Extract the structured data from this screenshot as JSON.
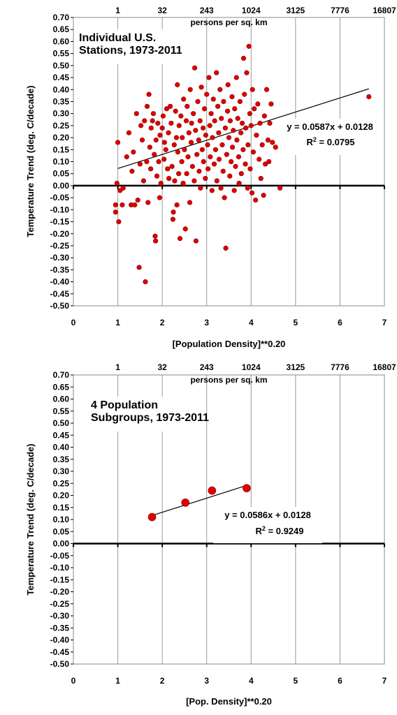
{
  "chart_data": [
    {
      "type": "scatter",
      "title": "Individual U.S. Stations, 1973-2011",
      "title_lines": [
        "Individual U.S.",
        "Stations, 1973-2011"
      ],
      "xlabel": "[Population Density]**0.20",
      "ylabel": "Temperature Trend (deg. C/decade)",
      "secondary_xlabel": "persons per sq. km",
      "secondary_x_ticks": [
        "1",
        "32",
        "243",
        "1024",
        "3125",
        "7776",
        "16807"
      ],
      "xlim": [
        0,
        7
      ],
      "ylim": [
        -0.5,
        0.7
      ],
      "x_ticks": [
        "0",
        "1",
        "2",
        "3",
        "4",
        "5",
        "6",
        "7"
      ],
      "y_ticks": [
        "0.70",
        "0.65",
        "0.60",
        "0.55",
        "0.50",
        "0.45",
        "0.40",
        "0.35",
        "0.30",
        "0.25",
        "0.20",
        "0.15",
        "0.10",
        "0.05",
        "0.00",
        "-0.05",
        "-0.10",
        "-0.15",
        "-0.20",
        "-0.25",
        "-0.30",
        "-0.35",
        "-0.40",
        "-0.45",
        "-0.50"
      ],
      "grid": "vertical",
      "marker_color": "#dd0000",
      "trendline": {
        "slope": 0.0587,
        "intercept": 0.0128,
        "x_range": [
          1.0,
          6.65
        ]
      },
      "equation": "y = 0.0587x + 0.0128",
      "r2_prefix": "R",
      "r2_value": " = 0.0795",
      "points": [
        [
          0.95,
          -0.11
        ],
        [
          0.95,
          -0.08
        ],
        [
          0.98,
          0.01
        ],
        [
          1.0,
          0.18
        ],
        [
          1.02,
          -0.15
        ],
        [
          1.05,
          -0.02
        ],
        [
          1.1,
          -0.08
        ],
        [
          1.12,
          -0.01
        ],
        [
          1.2,
          0.12
        ],
        [
          1.25,
          0.22
        ],
        [
          1.3,
          -0.08
        ],
        [
          1.32,
          0.06
        ],
        [
          1.35,
          0.14
        ],
        [
          1.38,
          -0.08
        ],
        [
          1.42,
          0.3
        ],
        [
          1.45,
          -0.06
        ],
        [
          1.48,
          -0.34
        ],
        [
          1.5,
          0.09
        ],
        [
          1.52,
          0.25
        ],
        [
          1.55,
          0.19
        ],
        [
          1.58,
          0.02
        ],
        [
          1.6,
          0.27
        ],
        [
          1.62,
          -0.4
        ],
        [
          1.65,
          0.1
        ],
        [
          1.66,
          0.33
        ],
        [
          1.68,
          -0.07
        ],
        [
          1.7,
          0.38
        ],
        [
          1.72,
          0.16
        ],
        [
          1.74,
          0.07
        ],
        [
          1.75,
          0.24
        ],
        [
          1.78,
          0.27
        ],
        [
          1.8,
          0.3
        ],
        [
          1.82,
          0.13
        ],
        [
          1.84,
          -0.21
        ],
        [
          1.85,
          -0.23
        ],
        [
          1.86,
          0.19
        ],
        [
          1.88,
          0.04
        ],
        [
          1.9,
          0.26
        ],
        [
          1.92,
          0.1
        ],
        [
          1.94,
          -0.05
        ],
        [
          1.95,
          0.21
        ],
        [
          1.97,
          0.01
        ],
        [
          2.0,
          0.24
        ],
        [
          2.02,
          0.29
        ],
        [
          2.04,
          0.11
        ],
        [
          2.05,
          0.18
        ],
        [
          2.08,
          0.15
        ],
        [
          2.1,
          0.32
        ],
        [
          2.12,
          0.07
        ],
        [
          2.14,
          0.22
        ],
        [
          2.15,
          0.03
        ],
        [
          2.18,
          0.33
        ],
        [
          2.2,
          0.26
        ],
        [
          2.22,
          0.08
        ],
        [
          2.24,
          -0.14
        ],
        [
          2.25,
          -0.11
        ],
        [
          2.27,
          0.17
        ],
        [
          2.28,
          0.02
        ],
        [
          2.3,
          0.31
        ],
        [
          2.32,
          0.2
        ],
        [
          2.33,
          -0.08
        ],
        [
          2.34,
          0.42
        ],
        [
          2.35,
          0.14
        ],
        [
          2.37,
          0.05
        ],
        [
          2.38,
          0.25
        ],
        [
          2.4,
          -0.22
        ],
        [
          2.42,
          0.29
        ],
        [
          2.44,
          0.1
        ],
        [
          2.45,
          0.2
        ],
        [
          2.47,
          0.01
        ],
        [
          2.48,
          0.36
        ],
        [
          2.5,
          0.15
        ],
        [
          2.52,
          -0.18
        ],
        [
          2.54,
          0.27
        ],
        [
          2.55,
          0.05
        ],
        [
          2.56,
          0.33
        ],
        [
          2.58,
          0.12
        ],
        [
          2.6,
          0.22
        ],
        [
          2.62,
          -0.07
        ],
        [
          2.63,
          0.4
        ],
        [
          2.65,
          0.18
        ],
        [
          2.66,
          0.26
        ],
        [
          2.68,
          0.08
        ],
        [
          2.7,
          0.3
        ],
        [
          2.72,
          0.02
        ],
        [
          2.73,
          0.49
        ],
        [
          2.75,
          0.23
        ],
        [
          2.76,
          -0.23
        ],
        [
          2.78,
          0.13
        ],
        [
          2.8,
          0.35
        ],
        [
          2.82,
          0.19
        ],
        [
          2.83,
          0.06
        ],
        [
          2.85,
          0.27
        ],
        [
          2.86,
          -0.01
        ],
        [
          2.88,
          0.41
        ],
        [
          2.9,
          0.15
        ],
        [
          2.92,
          0.24
        ],
        [
          2.93,
          0.1
        ],
        [
          2.95,
          0.32
        ],
        [
          2.97,
          0.03
        ],
        [
          2.98,
          0.21
        ],
        [
          3.0,
          0.38
        ],
        [
          3.02,
          0.17
        ],
        [
          3.03,
          0.07
        ],
        [
          3.05,
          0.45
        ],
        [
          3.07,
          0.25
        ],
        [
          3.08,
          0.12
        ],
        [
          3.1,
          0.3
        ],
        [
          3.12,
          -0.02
        ],
        [
          3.13,
          0.2
        ],
        [
          3.15,
          0.36
        ],
        [
          3.17,
          0.09
        ],
        [
          3.18,
          0.27
        ],
        [
          3.2,
          0.15
        ],
        [
          3.22,
          0.47
        ],
        [
          3.23,
          0.02
        ],
        [
          3.25,
          0.33
        ],
        [
          3.27,
          0.22
        ],
        [
          3.28,
          0.11
        ],
        [
          3.3,
          0.4
        ],
        [
          3.32,
          -0.01
        ],
        [
          3.33,
          0.28
        ],
        [
          3.35,
          0.17
        ],
        [
          3.37,
          0.06
        ],
        [
          3.38,
          0.35
        ],
        [
          3.4,
          -0.05
        ],
        [
          3.42,
          0.24
        ],
        [
          3.43,
          -0.26
        ],
        [
          3.45,
          0.13
        ],
        [
          3.47,
          0.31
        ],
        [
          3.48,
          0.42
        ],
        [
          3.5,
          0.2
        ],
        [
          3.52,
          0.04
        ],
        [
          3.53,
          0.27
        ],
        [
          3.55,
          0.1
        ],
        [
          3.57,
          0.37
        ],
        [
          3.58,
          0.16
        ],
        [
          3.6,
          0.23
        ],
        [
          3.62,
          -0.02
        ],
        [
          3.63,
          0.32
        ],
        [
          3.65,
          0.08
        ],
        [
          3.67,
          0.45
        ],
        [
          3.68,
          0.19
        ],
        [
          3.7,
          0.28
        ],
        [
          3.72,
          0.12
        ],
        [
          3.73,
          0.01
        ],
        [
          3.75,
          0.35
        ],
        [
          3.77,
          0.22
        ],
        [
          3.78,
          0.05
        ],
        [
          3.8,
          0.26
        ],
        [
          3.82,
          0.15
        ],
        [
          3.83,
          0.53
        ],
        [
          3.85,
          0.38
        ],
        [
          3.87,
          0.09
        ],
        [
          3.88,
          0.24
        ],
        [
          3.9,
          0.47
        ],
        [
          3.92,
          -0.01
        ],
        [
          3.93,
          0.17
        ],
        [
          3.95,
          0.58
        ],
        [
          3.97,
          0.3
        ],
        [
          3.98,
          0.07
        ],
        [
          4.0,
          0.25
        ],
        [
          4.02,
          -0.03
        ],
        [
          4.03,
          0.4
        ],
        [
          4.05,
          0.14
        ],
        [
          4.07,
          0.32
        ],
        [
          4.1,
          -0.06
        ],
        [
          4.12,
          0.21
        ],
        [
          4.15,
          0.34
        ],
        [
          4.18,
          0.11
        ],
        [
          4.2,
          0.26
        ],
        [
          4.22,
          0.03
        ],
        [
          4.25,
          0.17
        ],
        [
          4.28,
          -0.04
        ],
        [
          4.3,
          0.29
        ],
        [
          4.32,
          0.09
        ],
        [
          4.35,
          0.4
        ],
        [
          4.38,
          0.19
        ],
        [
          4.4,
          0.1
        ],
        [
          4.42,
          0.26
        ],
        [
          4.45,
          0.34
        ],
        [
          4.48,
          0.18
        ],
        [
          4.55,
          0.16
        ],
        [
          4.65,
          -0.01
        ],
        [
          6.65,
          0.37
        ]
      ]
    },
    {
      "type": "scatter",
      "title": "4 Population Subgroups, 1973-2011",
      "title_lines": [
        "4 Population",
        "Subgroups, 1973-2011"
      ],
      "xlabel": "[Pop. Density]**0.20",
      "ylabel": "Temperature Trend (deg. C/decade)",
      "secondary_xlabel": "persons per sq. km",
      "secondary_x_ticks": [
        "1",
        "32",
        "243",
        "1024",
        "3125",
        "7776",
        "16807"
      ],
      "xlim": [
        0,
        7
      ],
      "ylim": [
        -0.5,
        0.7
      ],
      "x_ticks": [
        "0",
        "1",
        "2",
        "3",
        "4",
        "5",
        "6",
        "7"
      ],
      "y_ticks": [
        "0.70",
        "0.65",
        "0.60",
        "0.55",
        "0.50",
        "0.45",
        "0.40",
        "0.35",
        "0.30",
        "0.25",
        "0.20",
        "0.15",
        "0.10",
        "0.05",
        "0.00",
        "-0.05",
        "-0.10",
        "-0.15",
        "-0.20",
        "-0.25",
        "-0.30",
        "-0.35",
        "-0.40",
        "-0.45",
        "-0.50"
      ],
      "grid": "vertical",
      "marker_color": "#dd0000",
      "trendline": {
        "slope": 0.0586,
        "intercept": 0.0128,
        "x_range": [
          1.77,
          3.9
        ]
      },
      "equation": "y = 0.0586x + 0.0128",
      "r2_prefix": "R",
      "r2_value": " = 0.9249",
      "points": [
        [
          1.77,
          0.11
        ],
        [
          2.52,
          0.17
        ],
        [
          3.12,
          0.22
        ],
        [
          3.9,
          0.23
        ]
      ]
    }
  ]
}
